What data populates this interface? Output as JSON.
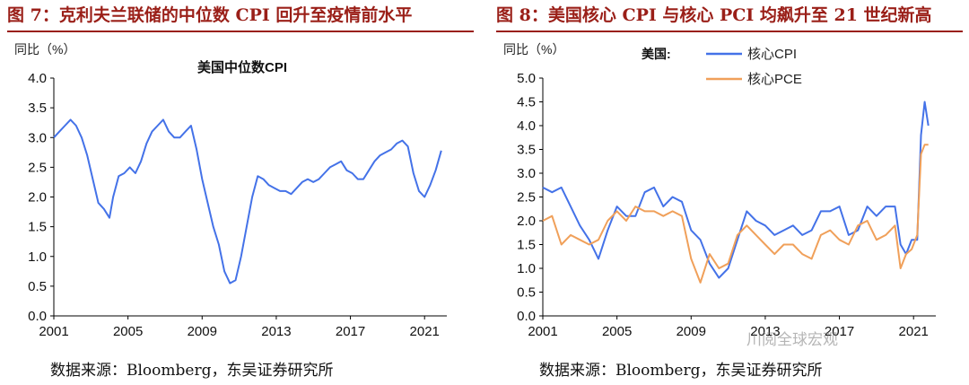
{
  "left": {
    "title": "图 7：克利夫兰联储的中位数 CPI 回升至疫情前水平",
    "source": "数据来源：Bloomberg，东吴证券研究所"
  },
  "right": {
    "title": "图 8：美国核心 CPI 与核心 PCI 均飙升至 21 世纪新高",
    "source": "数据来源：Bloomberg，东吴证券研究所"
  },
  "watermark": "川阅全球宏观",
  "colors": {
    "title": "#9a1f18",
    "blue": "#4472e8",
    "orange": "#f0a05a"
  },
  "chart_data": [
    {
      "type": "line",
      "title": "美国中位数CPI",
      "ylabel": "同比（%）",
      "xlabel": "",
      "ylim": [
        0.0,
        4.0
      ],
      "yticks": [
        "0.0",
        "0.5",
        "1.0",
        "1.5",
        "2.0",
        "2.5",
        "3.0",
        "3.5",
        "4.0"
      ],
      "xticks": [
        "2001",
        "2005",
        "2009",
        "2013",
        "2017",
        "2021"
      ],
      "xlim": [
        2001,
        2022.2
      ],
      "grid": false,
      "series": [
        {
          "name": "",
          "color": "#4472e8",
          "x": [
            2001.0,
            2001.3,
            2001.6,
            2001.9,
            2002.2,
            2002.5,
            2002.8,
            2003.1,
            2003.4,
            2003.7,
            2004.0,
            2004.2,
            2004.5,
            2004.8,
            2005.1,
            2005.4,
            2005.7,
            2006.0,
            2006.3,
            2006.6,
            2006.9,
            2007.2,
            2007.5,
            2007.8,
            2008.1,
            2008.4,
            2008.7,
            2009.0,
            2009.3,
            2009.6,
            2009.9,
            2010.2,
            2010.5,
            2010.8,
            2011.1,
            2011.4,
            2011.7,
            2012.0,
            2012.3,
            2012.6,
            2012.9,
            2013.2,
            2013.5,
            2013.8,
            2014.1,
            2014.4,
            2014.7,
            2015.0,
            2015.3,
            2015.6,
            2015.9,
            2016.2,
            2016.5,
            2016.8,
            2017.1,
            2017.4,
            2017.7,
            2018.0,
            2018.3,
            2018.6,
            2018.9,
            2019.2,
            2019.5,
            2019.8,
            2020.1,
            2020.4,
            2020.7,
            2021.0,
            2021.3,
            2021.6,
            2021.9
          ],
          "values": [
            3.0,
            3.1,
            3.2,
            3.3,
            3.2,
            3.0,
            2.7,
            2.3,
            1.9,
            1.8,
            1.65,
            2.0,
            2.35,
            2.4,
            2.5,
            2.4,
            2.6,
            2.9,
            3.1,
            3.2,
            3.3,
            3.1,
            3.0,
            3.0,
            3.1,
            3.2,
            2.8,
            2.3,
            1.9,
            1.5,
            1.2,
            0.75,
            0.55,
            0.6,
            1.0,
            1.5,
            2.0,
            2.35,
            2.3,
            2.2,
            2.15,
            2.1,
            2.1,
            2.05,
            2.15,
            2.25,
            2.3,
            2.25,
            2.3,
            2.4,
            2.5,
            2.55,
            2.6,
            2.45,
            2.4,
            2.3,
            2.3,
            2.45,
            2.6,
            2.7,
            2.75,
            2.8,
            2.9,
            2.95,
            2.85,
            2.4,
            2.1,
            2.0,
            2.2,
            2.45,
            2.78
          ]
        }
      ]
    },
    {
      "type": "line",
      "title": "",
      "ylabel": "同比（%）",
      "xlabel": "",
      "ylim": [
        0.0,
        5.0
      ],
      "yticks": [
        "0.0",
        "0.5",
        "1.0",
        "1.5",
        "2.0",
        "2.5",
        "3.0",
        "3.5",
        "4.0",
        "4.5",
        "5.0"
      ],
      "xticks": [
        "2001",
        "2005",
        "2009",
        "2013",
        "2017",
        "2021"
      ],
      "xlim": [
        2001,
        2022.2
      ],
      "legend_header": "美国:",
      "legend_position": "top",
      "grid": false,
      "series": [
        {
          "name": "核心CPI",
          "color": "#4472e8",
          "x": [
            2001.0,
            2001.5,
            2002.0,
            2002.5,
            2003.0,
            2003.5,
            2004.0,
            2004.5,
            2005.0,
            2005.5,
            2006.0,
            2006.5,
            2007.0,
            2007.5,
            2008.0,
            2008.5,
            2009.0,
            2009.5,
            2010.0,
            2010.5,
            2011.0,
            2011.5,
            2012.0,
            2012.5,
            2013.0,
            2013.5,
            2014.0,
            2014.5,
            2015.0,
            2015.5,
            2016.0,
            2016.5,
            2017.0,
            2017.5,
            2018.0,
            2018.5,
            2019.0,
            2019.5,
            2020.0,
            2020.3,
            2020.6,
            2020.9,
            2021.2,
            2021.4,
            2021.6,
            2021.8
          ],
          "values": [
            2.7,
            2.6,
            2.7,
            2.3,
            1.9,
            1.6,
            1.2,
            1.8,
            2.3,
            2.1,
            2.1,
            2.6,
            2.7,
            2.3,
            2.5,
            2.4,
            1.8,
            1.6,
            1.1,
            0.8,
            1.0,
            1.6,
            2.2,
            2.0,
            1.9,
            1.7,
            1.8,
            1.9,
            1.7,
            1.8,
            2.2,
            2.2,
            2.3,
            1.7,
            1.8,
            2.3,
            2.1,
            2.3,
            2.3,
            1.5,
            1.3,
            1.6,
            1.6,
            3.8,
            4.5,
            4.0
          ]
        },
        {
          "name": "核心PCE",
          "color": "#f0a05a",
          "x": [
            2001.0,
            2001.5,
            2002.0,
            2002.5,
            2003.0,
            2003.5,
            2004.0,
            2004.5,
            2005.0,
            2005.5,
            2006.0,
            2006.5,
            2007.0,
            2007.5,
            2008.0,
            2008.5,
            2009.0,
            2009.5,
            2010.0,
            2010.5,
            2011.0,
            2011.5,
            2012.0,
            2012.5,
            2013.0,
            2013.5,
            2014.0,
            2014.5,
            2015.0,
            2015.5,
            2016.0,
            2016.5,
            2017.0,
            2017.5,
            2018.0,
            2018.5,
            2019.0,
            2019.5,
            2020.0,
            2020.3,
            2020.6,
            2020.9,
            2021.2,
            2021.4,
            2021.6,
            2021.8
          ],
          "values": [
            2.0,
            2.1,
            1.5,
            1.7,
            1.6,
            1.5,
            1.6,
            2.0,
            2.2,
            2.0,
            2.3,
            2.2,
            2.2,
            2.1,
            2.2,
            2.1,
            1.2,
            0.7,
            1.3,
            1.0,
            1.1,
            1.7,
            1.9,
            1.7,
            1.5,
            1.3,
            1.5,
            1.5,
            1.3,
            1.2,
            1.7,
            1.8,
            1.6,
            1.5,
            1.9,
            2.0,
            1.6,
            1.7,
            1.9,
            1.0,
            1.3,
            1.4,
            1.7,
            3.4,
            3.6,
            3.6
          ]
        }
      ]
    }
  ]
}
